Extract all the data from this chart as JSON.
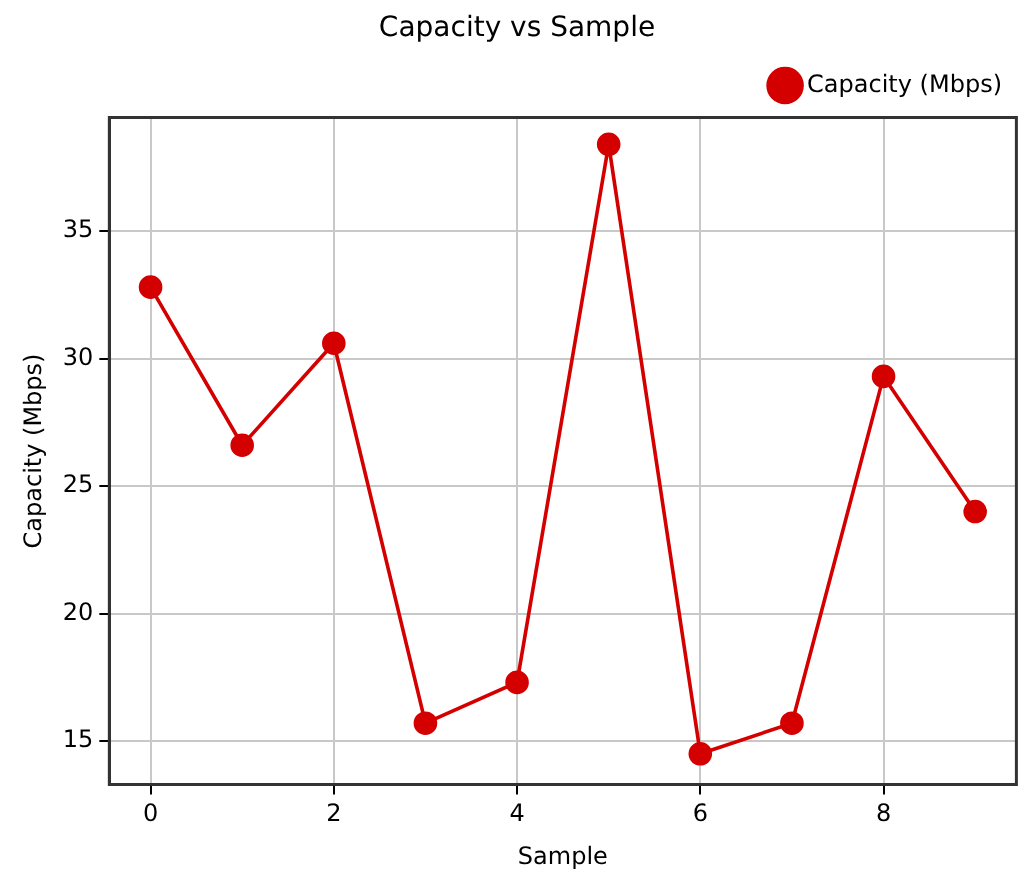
{
  "chart_data": {
    "type": "line",
    "title": "Capacity vs Sample",
    "xlabel": "Sample",
    "ylabel": "Capacity (Mbps)",
    "x": [
      0,
      1,
      2,
      3,
      4,
      5,
      6,
      7,
      8,
      9
    ],
    "series": [
      {
        "name": "Capacity (Mbps)",
        "color": "#d40000",
        "values": [
          32.8,
          26.6,
          30.6,
          15.7,
          17.3,
          38.4,
          14.5,
          15.7,
          29.3,
          24.0
        ]
      }
    ],
    "xlim": [
      -0.45,
      9.45
    ],
    "xticks": [
      0,
      2,
      4,
      6,
      8
    ],
    "ylim": [
      13.3,
      39.45
    ],
    "yticks": [
      15,
      20,
      25,
      30,
      35
    ],
    "grid": true,
    "legend": "top right",
    "marker": "circle",
    "line_style": "solid"
  }
}
